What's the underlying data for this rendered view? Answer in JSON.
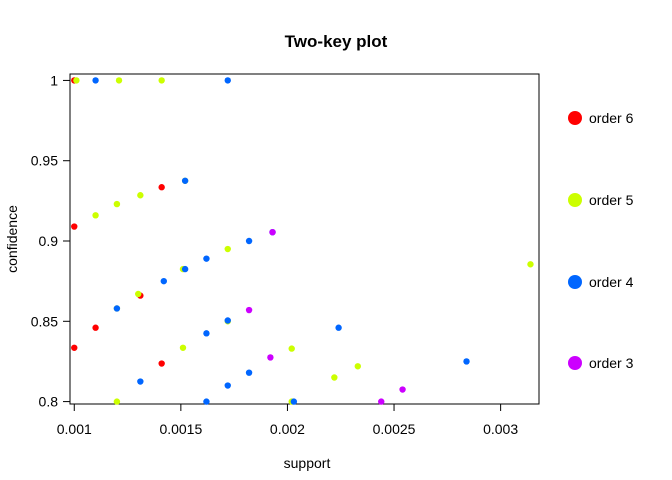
{
  "chart_data": {
    "type": "scatter",
    "title": "Two-key plot",
    "xlabel": "support",
    "ylabel": "confidence",
    "xlim": [
      0.00098,
      0.00318
    ],
    "ylim": [
      0.7985,
      1.004
    ],
    "x_ticks": [
      0.001,
      0.0015,
      0.002,
      0.0025,
      0.003
    ],
    "x_tick_labels": [
      "0.001",
      "0.0015",
      "0.002",
      "0.0025",
      "0.003"
    ],
    "y_ticks": [
      0.8,
      0.85,
      0.9,
      0.95,
      1.0
    ],
    "y_tick_labels": [
      "0.8",
      "0.85",
      "0.9",
      "0.95",
      "1"
    ],
    "legend_position": "right",
    "series": [
      {
        "name": "order 6",
        "color": "#ff0000",
        "points": [
          [
            0.001,
            1.0
          ],
          [
            0.001,
            0.909
          ],
          [
            0.001,
            0.8335
          ],
          [
            0.0011,
            0.846
          ],
          [
            0.00131,
            0.866
          ],
          [
            0.00141,
            0.9335
          ],
          [
            0.00141,
            0.8237
          ]
        ]
      },
      {
        "name": "order 5",
        "color": "#ccff00",
        "points": [
          [
            0.00101,
            1.0
          ],
          [
            0.00121,
            1.0
          ],
          [
            0.00141,
            1.0
          ],
          [
            0.0011,
            0.916
          ],
          [
            0.0012,
            0.923
          ],
          [
            0.00131,
            0.9285
          ],
          [
            0.00152,
            0.9375
          ],
          [
            0.0012,
            0.858
          ],
          [
            0.0013,
            0.867
          ],
          [
            0.00151,
            0.8825
          ],
          [
            0.00172,
            0.895
          ],
          [
            0.0012,
            0.8
          ],
          [
            0.00151,
            0.8335
          ],
          [
            0.00172,
            0.85
          ],
          [
            0.00202,
            0.833
          ],
          [
            0.00222,
            0.815
          ],
          [
            0.00233,
            0.822
          ],
          [
            0.00202,
            0.8
          ],
          [
            0.00314,
            0.8855
          ]
        ]
      },
      {
        "name": "order 4",
        "color": "#0066ff",
        "points": [
          [
            0.0011,
            1.0
          ],
          [
            0.00172,
            1.0
          ],
          [
            0.00152,
            0.9375
          ],
          [
            0.00162,
            0.889
          ],
          [
            0.00182,
            0.9
          ],
          [
            0.00193,
            0.9055
          ],
          [
            0.00142,
            0.875
          ],
          [
            0.00152,
            0.8825
          ],
          [
            0.00162,
            0.8425
          ],
          [
            0.00172,
            0.8505
          ],
          [
            0.00224,
            0.846
          ],
          [
            0.00284,
            0.825
          ],
          [
            0.00131,
            0.8125
          ],
          [
            0.00162,
            0.8
          ],
          [
            0.00172,
            0.81
          ],
          [
            0.00182,
            0.818
          ],
          [
            0.00203,
            0.8
          ],
          [
            0.0012,
            0.858
          ]
        ]
      },
      {
        "name": "order 3",
        "color": "#cc00ff",
        "points": [
          [
            0.00182,
            0.857
          ],
          [
            0.00193,
            0.9055
          ],
          [
            0.00192,
            0.8275
          ],
          [
            0.00244,
            0.8
          ],
          [
            0.00254,
            0.8075
          ]
        ]
      }
    ]
  }
}
